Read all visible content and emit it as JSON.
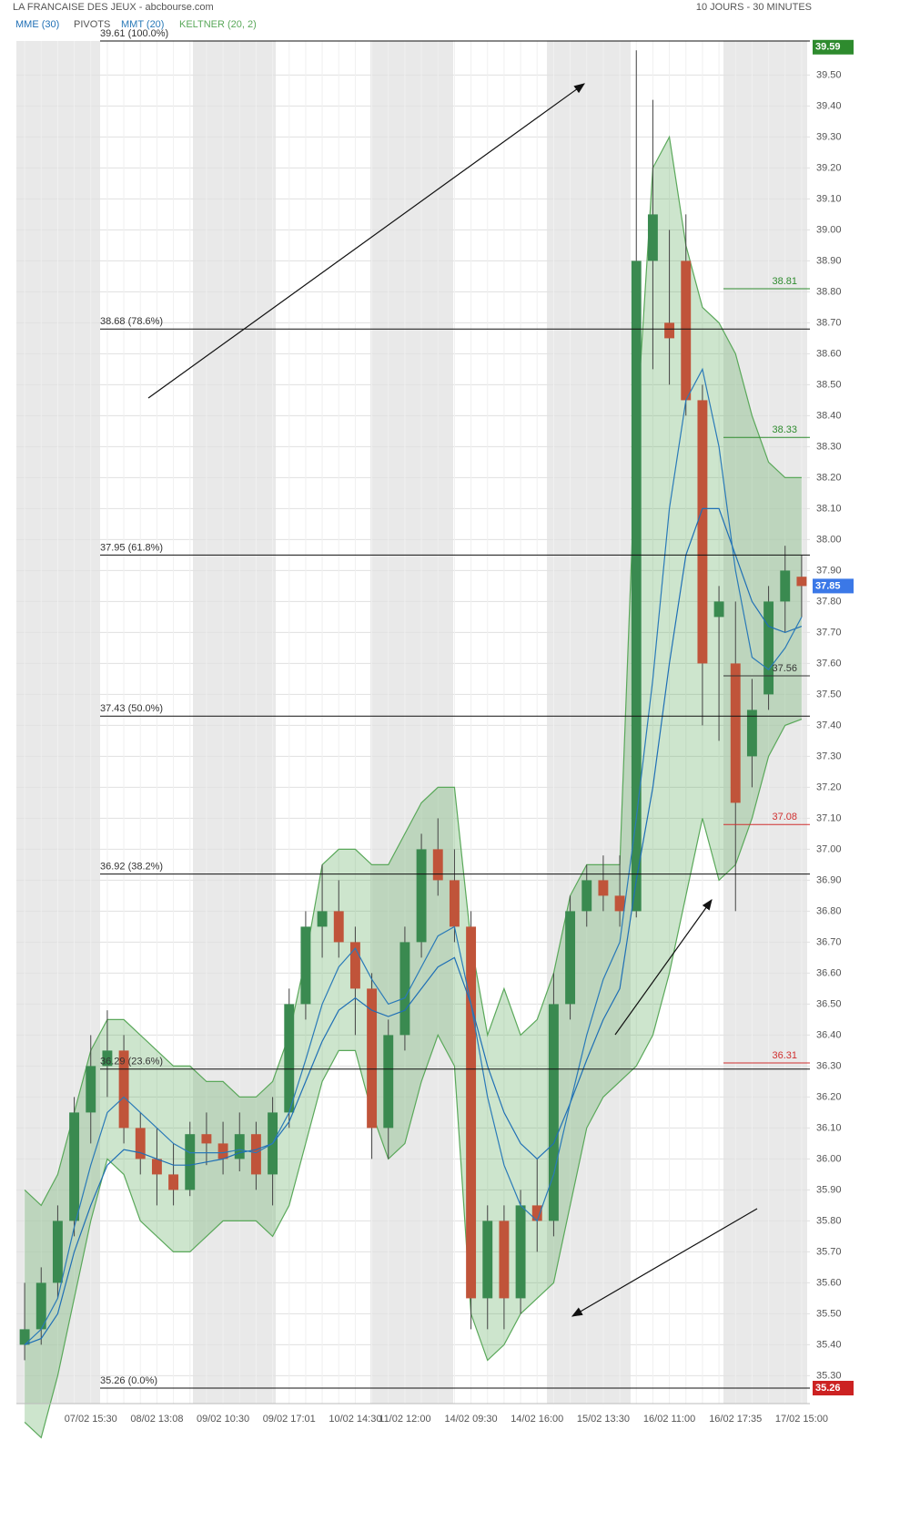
{
  "chart_data": {
    "type": "candlestick",
    "title": "LA FRANCAISE DES JEUX - abcbourse.com",
    "subtitle": "10 JOURS - 30 MINUTES",
    "categories": [
      null,
      null,
      null,
      null,
      "07/02 15:30",
      null,
      null,
      null,
      "08/02 13:08",
      null,
      null,
      null,
      "09/02 10:30",
      null,
      null,
      null,
      "09/02 17:01",
      null,
      null,
      null,
      "10/02 14:30",
      null,
      null,
      "11/02 12:00",
      null,
      null,
      null,
      "14/02 09:30",
      null,
      null,
      null,
      "14/02 16:00",
      null,
      null,
      null,
      "15/02 13:30",
      null,
      null,
      null,
      "16/02 11:00",
      null,
      null,
      null,
      "16/02 17:35",
      null,
      null,
      null,
      "17/02 15:00"
    ],
    "candles": {
      "up_color": "#3a8a50",
      "down_color": "#c0543a",
      "open": [
        35.4,
        35.45,
        35.6,
        35.8,
        36.15,
        36.3,
        36.35,
        36.1,
        36.0,
        35.95,
        35.9,
        36.08,
        36.05,
        36.0,
        36.08,
        35.95,
        36.15,
        36.5,
        36.75,
        36.8,
        36.7,
        36.55,
        36.1,
        36.4,
        36.7,
        37.0,
        36.9,
        36.75,
        35.55,
        35.8,
        35.55,
        35.85,
        35.8,
        36.5,
        36.8,
        36.9,
        36.85,
        36.8,
        38.9,
        38.7,
        38.9,
        38.45,
        37.75,
        37.6,
        37.3,
        37.5,
        37.8,
        37.88
      ],
      "high": [
        35.6,
        35.65,
        35.85,
        36.2,
        36.4,
        36.48,
        36.4,
        36.15,
        36.1,
        36.05,
        36.12,
        36.15,
        36.12,
        36.15,
        36.12,
        36.2,
        36.55,
        36.8,
        36.95,
        36.9,
        36.75,
        36.6,
        36.45,
        36.75,
        37.05,
        37.1,
        37.0,
        36.8,
        35.85,
        35.85,
        35.9,
        36.0,
        36.6,
        36.85,
        36.95,
        36.98,
        36.98,
        39.58,
        39.42,
        39.0,
        39.05,
        38.5,
        37.85,
        37.8,
        37.55,
        37.85,
        37.98,
        37.95
      ],
      "low": [
        35.35,
        35.4,
        35.55,
        35.75,
        36.05,
        36.2,
        36.05,
        35.95,
        35.85,
        35.85,
        35.88,
        35.98,
        35.95,
        35.96,
        35.9,
        35.85,
        36.1,
        36.45,
        36.65,
        36.65,
        36.4,
        36.0,
        36.0,
        36.35,
        36.65,
        36.85,
        36.7,
        35.45,
        35.45,
        35.45,
        35.5,
        35.7,
        35.75,
        36.45,
        36.75,
        36.8,
        36.75,
        36.78,
        38.55,
        38.5,
        38.4,
        37.4,
        37.35,
        36.8,
        37.2,
        37.45,
        37.7,
        37.75
      ],
      "close": [
        35.45,
        35.6,
        35.8,
        36.15,
        36.3,
        36.35,
        36.1,
        36.0,
        35.95,
        35.9,
        36.08,
        36.05,
        36.0,
        36.08,
        35.95,
        36.15,
        36.5,
        36.75,
        36.8,
        36.7,
        36.55,
        36.1,
        36.4,
        36.7,
        37.0,
        36.9,
        36.75,
        35.55,
        35.8,
        35.55,
        35.85,
        35.8,
        36.5,
        36.8,
        36.9,
        36.85,
        36.8,
        38.9,
        39.05,
        38.65,
        38.45,
        37.6,
        37.8,
        37.15,
        37.45,
        37.8,
        37.9,
        37.85
      ]
    },
    "overlays": [
      {
        "name": "MME (30)",
        "color": "#1f6fb5",
        "values": [
          35.4,
          35.42,
          35.5,
          35.7,
          35.85,
          35.98,
          36.03,
          36.02,
          36.0,
          35.98,
          35.98,
          35.99,
          36.0,
          36.02,
          36.03,
          36.05,
          36.12,
          36.25,
          36.38,
          36.48,
          36.52,
          36.48,
          36.46,
          36.48,
          36.55,
          36.62,
          36.65,
          36.5,
          36.3,
          36.15,
          36.05,
          36.0,
          36.05,
          36.18,
          36.32,
          36.45,
          36.55,
          36.9,
          37.2,
          37.6,
          37.95,
          38.1,
          38.1,
          37.95,
          37.8,
          37.72,
          37.7,
          37.72
        ]
      },
      {
        "name": "MMT (20)",
        "color": "#2a7ab8",
        "values": [
          35.4,
          35.45,
          35.55,
          35.78,
          35.98,
          36.15,
          36.2,
          36.15,
          36.1,
          36.05,
          36.02,
          36.02,
          36.02,
          36.03,
          36.02,
          36.05,
          36.15,
          36.32,
          36.5,
          36.62,
          36.68,
          36.58,
          36.5,
          36.52,
          36.62,
          36.72,
          36.75,
          36.5,
          36.2,
          35.98,
          35.85,
          35.8,
          35.95,
          36.18,
          36.4,
          36.58,
          36.7,
          37.1,
          37.55,
          38.1,
          38.45,
          38.55,
          38.3,
          37.9,
          37.62,
          37.58,
          37.65,
          37.75
        ]
      },
      {
        "name": "KELTNER (20, 2)",
        "color": "#5aa85a",
        "upper": [
          35.9,
          35.85,
          35.95,
          36.15,
          36.35,
          36.45,
          36.45,
          36.4,
          36.35,
          36.3,
          36.3,
          36.25,
          36.25,
          36.2,
          36.2,
          36.25,
          36.4,
          36.65,
          36.95,
          37.0,
          37.0,
          36.95,
          36.95,
          37.05,
          37.15,
          37.2,
          37.2,
          36.7,
          36.4,
          36.55,
          36.4,
          36.45,
          36.6,
          36.85,
          36.95,
          36.95,
          36.95,
          38.35,
          39.2,
          39.3,
          38.95,
          38.75,
          38.7,
          38.6,
          38.4,
          38.25,
          38.2,
          38.2
        ],
        "lower": [
          35.15,
          35.1,
          35.3,
          35.55,
          35.8,
          36.0,
          35.95,
          35.8,
          35.75,
          35.7,
          35.7,
          35.75,
          35.8,
          35.8,
          35.8,
          35.75,
          35.85,
          36.05,
          36.25,
          36.35,
          36.35,
          36.15,
          36.0,
          36.05,
          36.25,
          36.4,
          36.3,
          35.5,
          35.35,
          35.4,
          35.5,
          35.55,
          35.6,
          35.85,
          36.1,
          36.2,
          36.25,
          36.3,
          36.4,
          36.6,
          36.85,
          37.1,
          36.9,
          36.95,
          37.1,
          37.3,
          37.4,
          37.42
        ]
      }
    ],
    "pivots": {
      "name": "PIVOTS",
      "levels": [
        {
          "value": 38.81,
          "color": "#2e8b2e"
        },
        {
          "value": 38.33,
          "color": "#2e8b2e"
        },
        {
          "value": 37.56,
          "color": "#333333"
        },
        {
          "value": 37.08,
          "color": "#d03030"
        },
        {
          "value": 36.31,
          "color": "#d03030"
        }
      ]
    },
    "fibonacci": [
      {
        "value": 39.61,
        "label": "39.61  (100.0%)"
      },
      {
        "value": 38.68,
        "label": "38.68  (78.6%)"
      },
      {
        "value": 37.95,
        "label": "37.95  (61.8%)"
      },
      {
        "value": 37.43,
        "label": "37.43  (50.0%)"
      },
      {
        "value": 36.92,
        "label": "36.92  (38.2%)"
      },
      {
        "value": 36.29,
        "label": "36.29  (23.6%)"
      },
      {
        "value": 35.26,
        "label": "35.26  (0.0%)"
      }
    ],
    "badges": [
      {
        "value": 39.59,
        "color": "#2e8b2e"
      },
      {
        "value": 37.85,
        "color": "#3b78e7"
      },
      {
        "value": 35.26,
        "color": "#cc2222"
      }
    ],
    "ylim": [
      35.21,
      39.61
    ],
    "yticks": [
      {
        "value": 35.3,
        "label": "35.30"
      },
      {
        "value": 35.4,
        "label": "35.40"
      },
      {
        "value": 35.5,
        "label": "35.50"
      },
      {
        "value": 35.6,
        "label": "35.60"
      },
      {
        "value": 35.7,
        "label": "35.70"
      },
      {
        "value": 35.8,
        "label": "35.80"
      },
      {
        "value": 35.9,
        "label": "35.90"
      },
      {
        "value": 36,
        "label": "36.00"
      },
      {
        "value": 36.1,
        "label": "36.10"
      },
      {
        "value": 36.2,
        "label": "36.20"
      },
      {
        "value": 36.3,
        "label": "36.30"
      },
      {
        "value": 36.4,
        "label": "36.40"
      },
      {
        "value": 36.5,
        "label": "36.50"
      },
      {
        "value": 36.6,
        "label": "36.60"
      },
      {
        "value": 36.7,
        "label": "36.70"
      },
      {
        "value": 36.8,
        "label": "36.80"
      },
      {
        "value": 36.9,
        "label": "36.90"
      },
      {
        "value": 37,
        "label": "37.00"
      },
      {
        "value": 37.1,
        "label": "37.10"
      },
      {
        "value": 37.2,
        "label": "37.20"
      },
      {
        "value": 37.3,
        "label": "37.30"
      },
      {
        "value": 37.4,
        "label": "37.40"
      },
      {
        "value": 37.5,
        "label": "37.50"
      },
      {
        "value": 37.6,
        "label": "37.60"
      },
      {
        "value": 37.7,
        "label": "37.70"
      },
      {
        "value": 37.8,
        "label": "37.80"
      },
      {
        "value": 37.9,
        "label": "37.90"
      },
      {
        "value": 38,
        "label": "38.00"
      },
      {
        "value": 38.1,
        "label": "38.10"
      },
      {
        "value": 38.2,
        "label": "38.20"
      },
      {
        "value": 38.3,
        "label": "38.30"
      },
      {
        "value": 38.4,
        "label": "38.40"
      },
      {
        "value": 38.5,
        "label": "38.50"
      },
      {
        "value": 38.6,
        "label": "38.60"
      },
      {
        "value": 38.7,
        "label": "38.70"
      },
      {
        "value": 38.8,
        "label": "38.80"
      },
      {
        "value": 38.9,
        "label": "38.90"
      },
      {
        "value": 39,
        "label": "39.00"
      },
      {
        "value": 39.1,
        "label": "39.10"
      },
      {
        "value": 39.2,
        "label": "39.20"
      },
      {
        "value": 39.3,
        "label": "39.30"
      },
      {
        "value": 39.4,
        "label": "39.40"
      },
      {
        "value": 39.5,
        "label": "39.50"
      }
    ],
    "grid": true
  }
}
